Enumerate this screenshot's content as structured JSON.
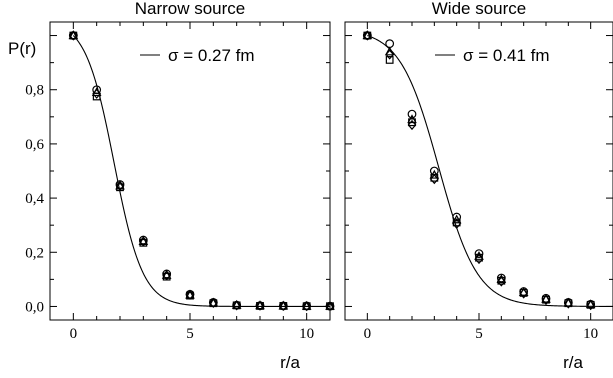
{
  "chart_data": [
    {
      "type": "scatter",
      "title": "Narrow source",
      "xlabel": "r/a",
      "ylabel": "P(r)",
      "xlim": [
        -1,
        11
      ],
      "ylim": [
        -0.05,
        1.05
      ],
      "xticks": [
        0,
        5,
        10
      ],
      "xtick_labels": [
        "0",
        "5",
        "10"
      ],
      "yticks": [
        0.0,
        0.2,
        0.4,
        0.6,
        0.8
      ],
      "ytick_labels": [
        "0,0",
        "0,2",
        "0,4",
        "0,6",
        "0,8"
      ],
      "legend": {
        "position": "top-right",
        "label": "σ = 0.27 fm"
      },
      "fit": {
        "sigma_label": "σ = 0.27 fm",
        "r0": 1.75,
        "w": 1.35
      },
      "series": [
        {
          "marker": "circle",
          "x": [
            0,
            1,
            2,
            3,
            4,
            5,
            6,
            7,
            8,
            9,
            10,
            11
          ],
          "y": [
            1.0,
            0.8,
            0.45,
            0.245,
            0.12,
            0.045,
            0.015,
            0.005,
            0.003,
            0.002,
            0.002,
            0.001
          ]
        },
        {
          "marker": "square",
          "x": [
            0,
            1,
            2,
            3,
            4,
            5,
            6,
            7,
            8,
            9,
            10,
            11
          ],
          "y": [
            1.0,
            0.775,
            0.44,
            0.235,
            0.11,
            0.04,
            0.012,
            0.004,
            0.002,
            0.002,
            0.001,
            0.001
          ]
        },
        {
          "marker": "triangle",
          "x": [
            0,
            1,
            2,
            3,
            4,
            5,
            6,
            7,
            8,
            9,
            10,
            11
          ],
          "y": [
            1.0,
            0.79,
            0.445,
            0.24,
            0.115,
            0.042,
            0.013,
            0.005,
            0.003,
            0.002,
            0.001,
            0.001
          ]
        },
        {
          "marker": "diamond",
          "x": [
            0,
            1,
            2,
            3,
            4,
            5,
            6,
            7,
            8,
            9,
            10,
            11
          ],
          "y": [
            1.0,
            0.785,
            0.445,
            0.24,
            0.115,
            0.043,
            0.013,
            0.004,
            0.003,
            0.002,
            0.001,
            0.001
          ]
        }
      ]
    },
    {
      "type": "scatter",
      "title": "Wide source",
      "xlabel": "r/a",
      "ylabel": "",
      "xlim": [
        -1,
        11
      ],
      "ylim": [
        -0.05,
        1.05
      ],
      "xticks": [
        0,
        5,
        10
      ],
      "xtick_labels": [
        "0",
        "5",
        "10"
      ],
      "yticks": [
        0.0,
        0.2,
        0.4,
        0.6,
        0.8
      ],
      "ytick_labels": [],
      "legend": {
        "position": "top-right",
        "label": "σ = 0.41 fm"
      },
      "fit": {
        "sigma_label": "σ = 0.41 fm",
        "r0": 3.2,
        "w": 1.9
      },
      "series": [
        {
          "marker": "circle",
          "x": [
            0,
            1,
            2,
            3,
            4,
            5,
            6,
            7,
            8,
            9,
            10
          ],
          "y": [
            1.0,
            0.97,
            0.71,
            0.5,
            0.33,
            0.195,
            0.105,
            0.055,
            0.03,
            0.015,
            0.008
          ]
        },
        {
          "marker": "square",
          "x": [
            0,
            1,
            2,
            3,
            4,
            5,
            6,
            7,
            8,
            9,
            10
          ],
          "y": [
            1.0,
            0.91,
            0.68,
            0.475,
            0.31,
            0.18,
            0.095,
            0.05,
            0.025,
            0.012,
            0.006
          ]
        },
        {
          "marker": "triangle",
          "x": [
            0,
            1,
            2,
            3,
            4,
            5,
            6,
            7,
            8,
            9,
            10
          ],
          "y": [
            1.0,
            0.94,
            0.69,
            0.485,
            0.32,
            0.185,
            0.1,
            0.052,
            0.027,
            0.013,
            0.007
          ]
        },
        {
          "marker": "diamond",
          "x": [
            0,
            1,
            2,
            3,
            4,
            5,
            6,
            7,
            8,
            9,
            10
          ],
          "y": [
            1.0,
            0.93,
            0.67,
            0.47,
            0.305,
            0.175,
            0.092,
            0.048,
            0.024,
            0.011,
            0.005
          ]
        }
      ]
    }
  ]
}
